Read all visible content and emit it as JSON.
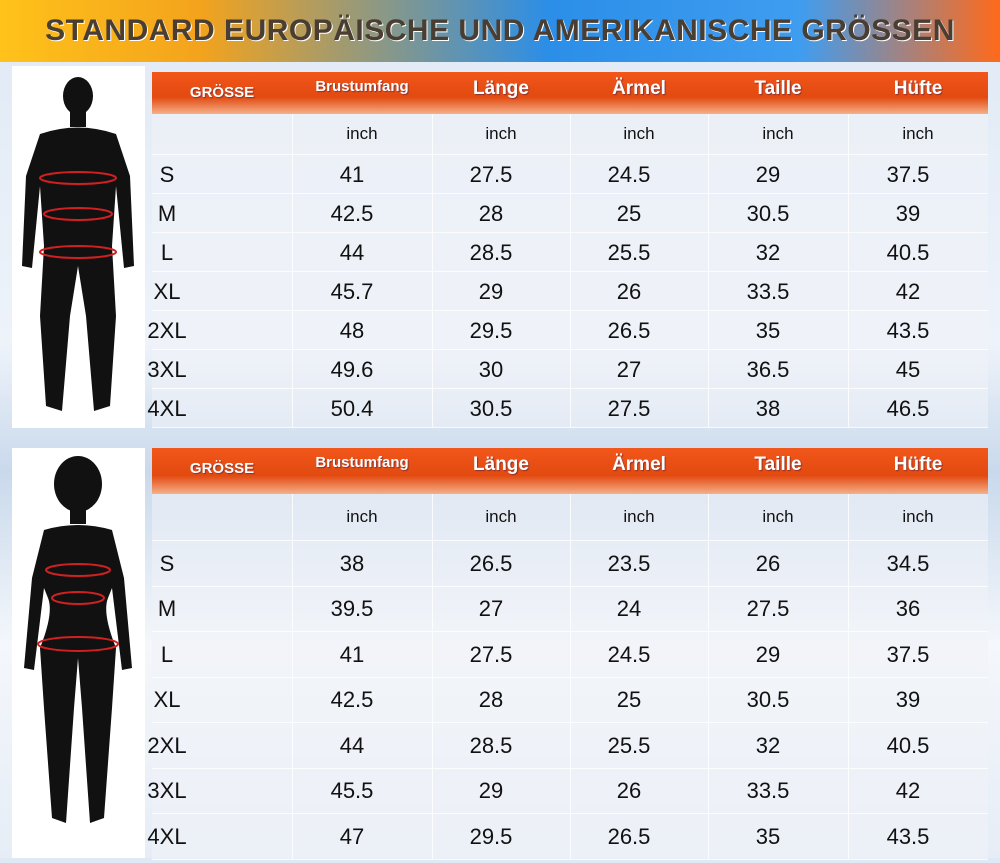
{
  "header": {
    "title": "STANDARD EUROPÄISCHE UND AMERIKANISCHE GRÖSSEN"
  },
  "tables": [
    {
      "columns": [
        "GRÖSSE",
        "Brustumfang",
        "Länge",
        "Ärmel",
        "Taille",
        "Hüfte"
      ],
      "units": [
        "inch",
        "inch",
        "inch",
        "inch",
        "inch"
      ],
      "rows": [
        [
          "S",
          "41",
          "27.5",
          "24.5",
          "29",
          "37.5"
        ],
        [
          "M",
          "42.5",
          "28",
          "25",
          "30.5",
          "39"
        ],
        [
          "L",
          "44",
          "28.5",
          "25.5",
          "32",
          "40.5"
        ],
        [
          "XL",
          "45.7",
          "29",
          "26",
          "33.5",
          "42"
        ],
        [
          "2XL",
          "48",
          "29.5",
          "26.5",
          "35",
          "43.5"
        ],
        [
          "3XL",
          "49.6",
          "30",
          "27",
          "36.5",
          "45"
        ],
        [
          "4XL",
          "50.4",
          "30.5",
          "27.5",
          "38",
          "46.5"
        ]
      ]
    },
    {
      "columns": [
        "GRÖSSE",
        "Brustumfang",
        "Länge",
        "Ärmel",
        "Taille",
        "Hüfte"
      ],
      "units": [
        "inch",
        "inch",
        "inch",
        "inch",
        "inch"
      ],
      "rows": [
        [
          "S",
          "38",
          "26.5",
          "23.5",
          "26",
          "34.5"
        ],
        [
          "M",
          "39.5",
          "27",
          "24",
          "27.5",
          "36"
        ],
        [
          "L",
          "41",
          "27.5",
          "24.5",
          "29",
          "37.5"
        ],
        [
          "XL",
          "42.5",
          "28",
          "25",
          "30.5",
          "39"
        ],
        [
          "2XL",
          "44",
          "28.5",
          "25.5",
          "32",
          "40.5"
        ],
        [
          "3XL",
          "45.5",
          "29",
          "26",
          "33.5",
          "42"
        ],
        [
          "4XL",
          "47",
          "29.5",
          "26.5",
          "35",
          "43.5"
        ]
      ]
    }
  ]
}
